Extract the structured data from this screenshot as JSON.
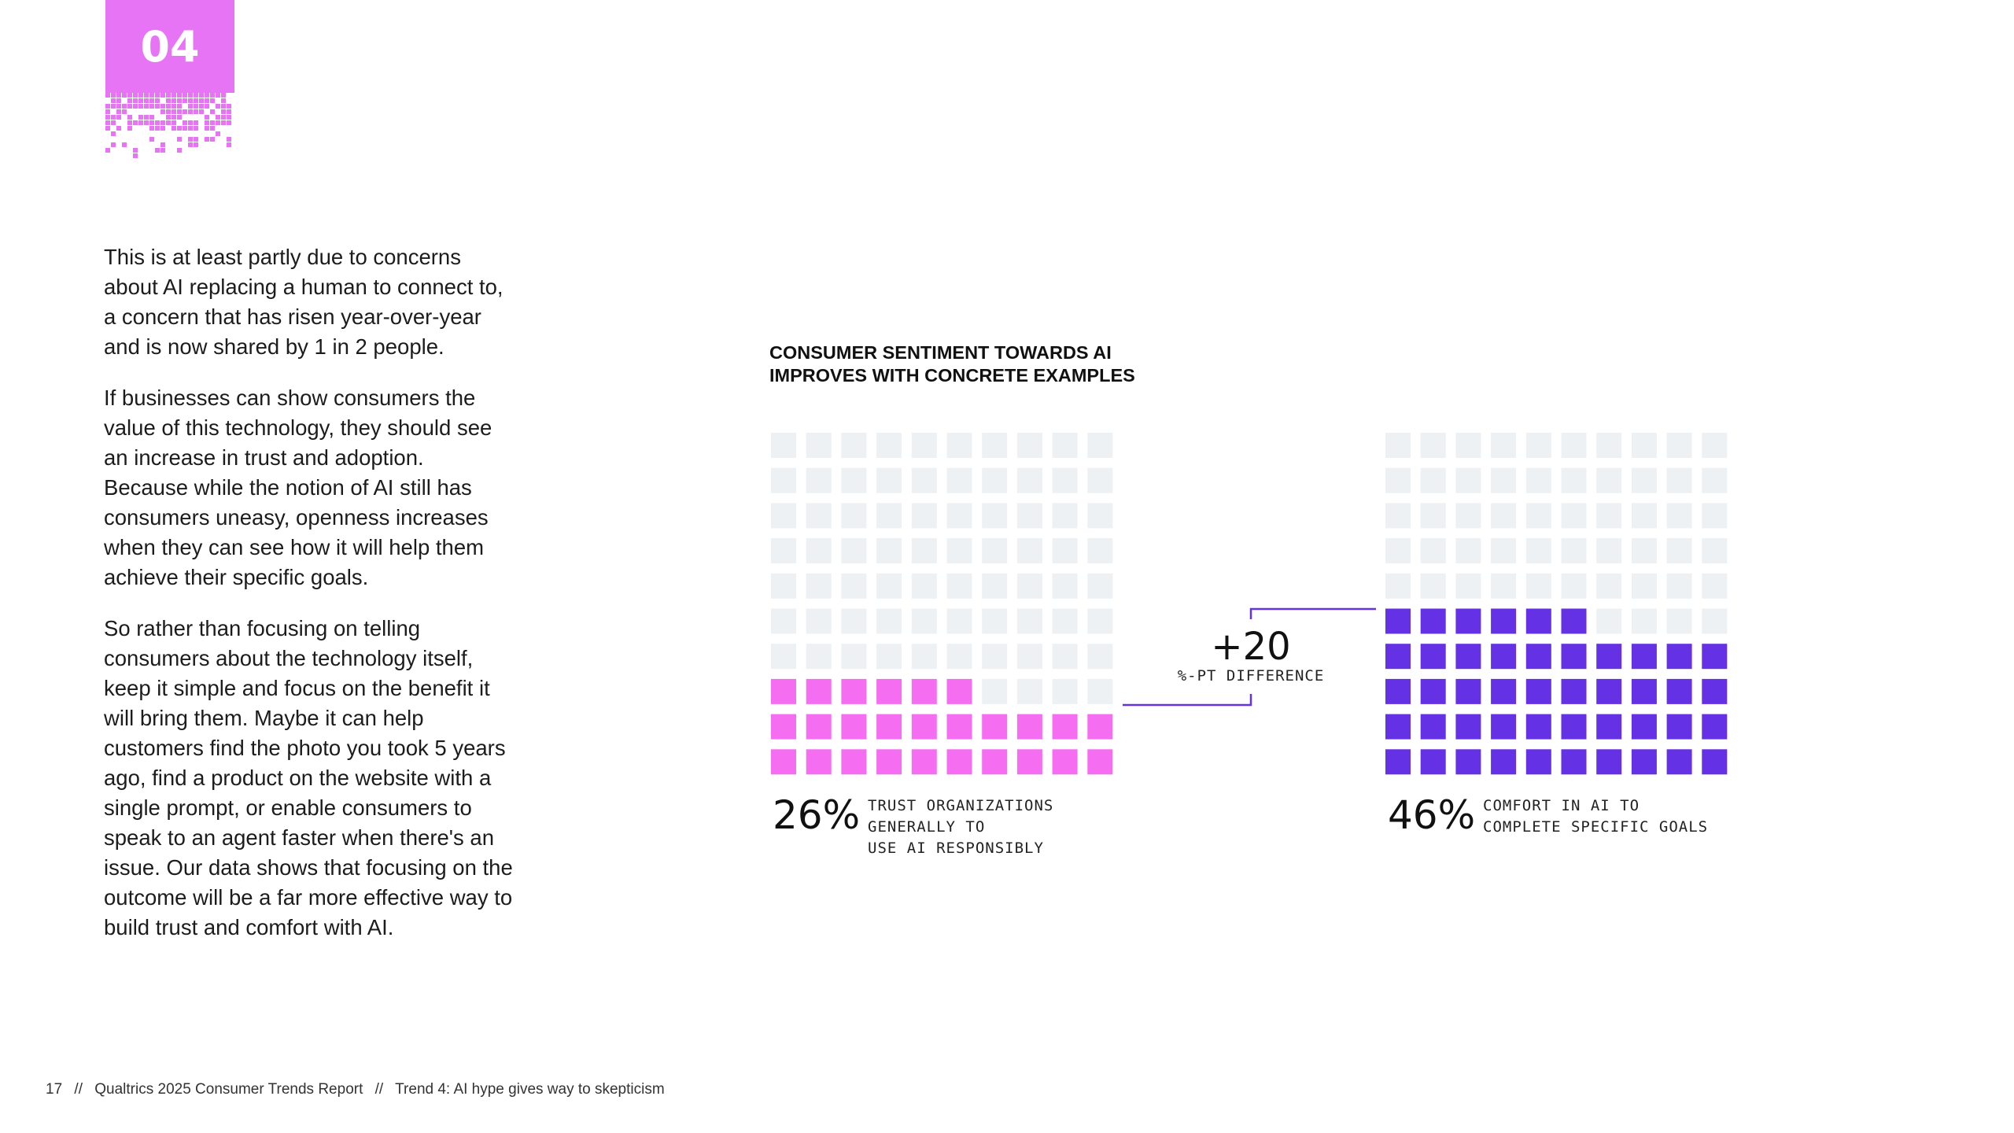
{
  "section_badge": "04",
  "body": {
    "paragraphs": [
      "This is at least partly due to concerns about AI replacing a human to connect to, a concern that has risen year-over-year and is now shared by 1 in 2 people.",
      "If businesses can show consumers the value of this technology, they should see an increase in trust and adoption. Because while the notion of AI still has consumers uneasy, openness increases when they can see how it will help them achieve their specific goals.",
      "So rather than focusing on telling consumers about the technology itself, keep it simple and focus on the benefit it will bring them. Maybe it can help customers find the photo you took 5 years ago, find a product on the website with a single prompt, or enable consumers to speak to an agent faster when there's an issue. Our data shows that focusing on the outcome will be a far more effective way to build trust and comfort with AI."
    ]
  },
  "chart_data": {
    "type": "waffle",
    "title": "CONSUMER SENTIMENT TOWARDS AI IMPROVES WITH CONCRETE EXAMPLES",
    "total_cells": 100,
    "series": [
      {
        "name": "trust",
        "value": 26,
        "label": "26%",
        "caption_lines": [
          "TRUST ORGANIZATIONS",
          "GENERALLY TO",
          "USE AI RESPONSIBLY"
        ],
        "color": "#f56ef1"
      },
      {
        "name": "comfort",
        "value": 46,
        "label": "46%",
        "caption_lines": [
          "COMFORT IN AI TO",
          "COMPLETE SPECIFIC GOALS"
        ],
        "color": "#6431e4"
      }
    ],
    "empty_color": "#edf1f3",
    "difference": {
      "value": "+20",
      "label": "%-PT DIFFERENCE",
      "line_color": "#6431e4"
    }
  },
  "footer": {
    "page": "17",
    "separator": "//",
    "report": "Qualtrics 2025 Consumer Trends Report",
    "trend": "Trend 4: AI hype gives way to skepticism"
  },
  "colors": {
    "badge": "#e774f5"
  }
}
